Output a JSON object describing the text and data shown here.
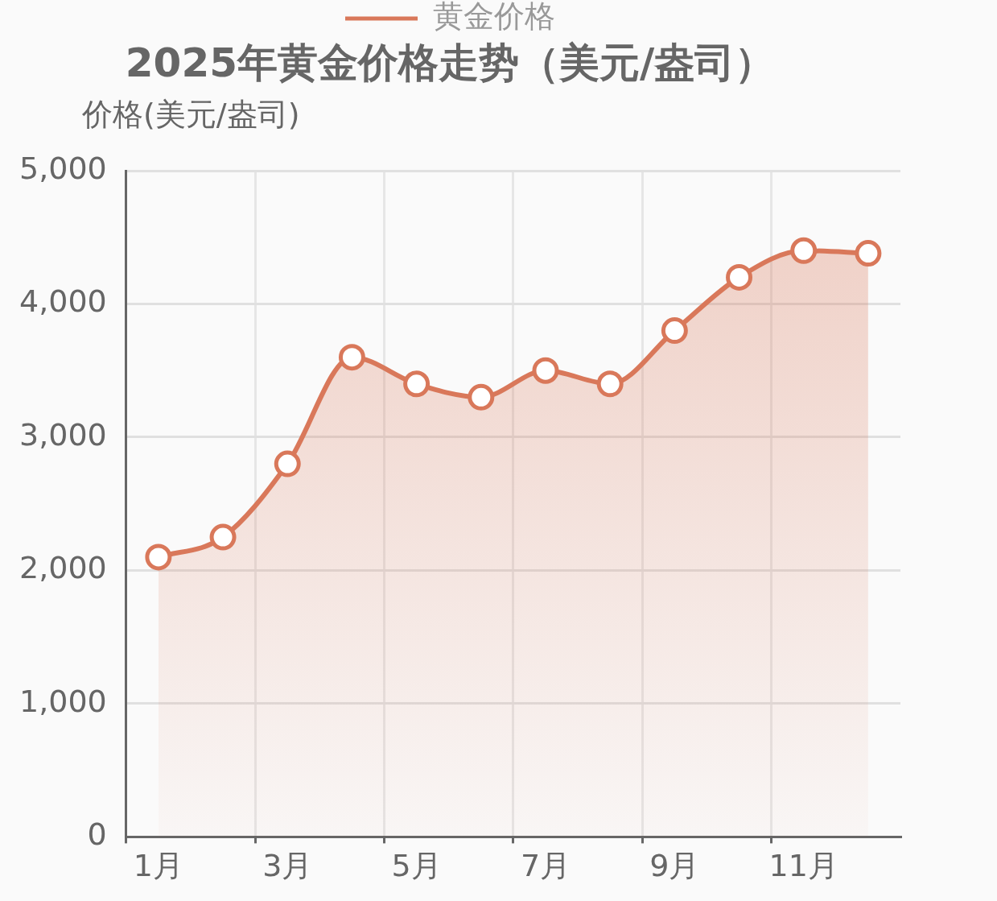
{
  "chart_data": {
    "type": "area",
    "title": "2025年黄金价格走势（美元/盎司）",
    "ylabel": "价格(美元/盎司)",
    "categories": [
      "1月",
      null,
      "3月",
      null,
      "5月",
      null,
      "7月",
      null,
      "9月",
      null,
      "11月",
      null
    ],
    "series": [
      {
        "name": "黄金价格",
        "color": "#d9785a",
        "values": [
          2100,
          2250,
          2800,
          3600,
          3400,
          3300,
          3500,
          3400,
          3800,
          4200,
          4400,
          4380
        ]
      }
    ],
    "ylim": [
      0,
      5000
    ],
    "yticks": [
      {
        "value": 0,
        "label": "0"
      },
      {
        "value": 1000,
        "label": "1,000"
      },
      {
        "value": 2000,
        "label": "2,000"
      },
      {
        "value": 3000,
        "label": "3,000"
      },
      {
        "value": 4000,
        "label": "4,000"
      },
      {
        "value": 5000,
        "label": "5,000"
      }
    ],
    "grid": true,
    "legend": "top",
    "marker": "circle",
    "line_style": "solid"
  }
}
